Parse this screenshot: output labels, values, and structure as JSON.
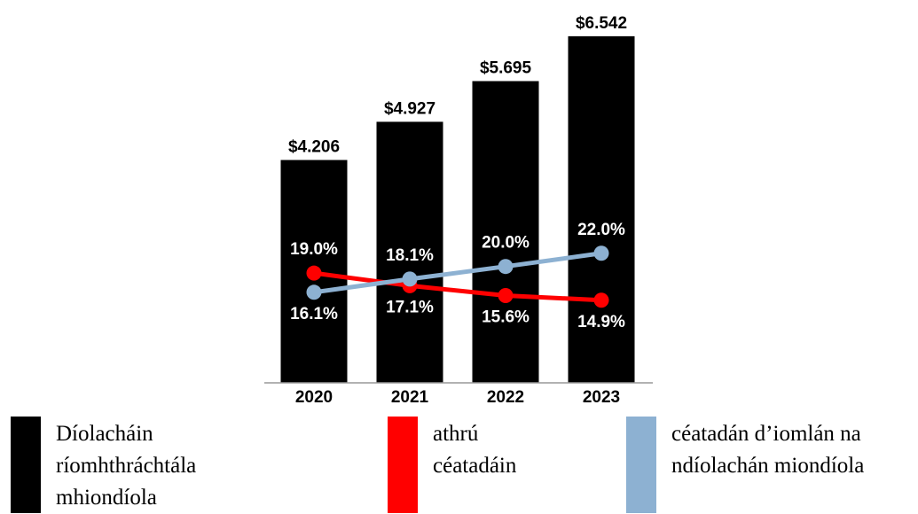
{
  "chart_data": {
    "type": "bar",
    "categories": [
      "2020",
      "2021",
      "2022",
      "2023"
    ],
    "ylim": [
      0,
      7
    ],
    "y2lim": [
      2.4,
      58.5
    ],
    "series": [
      {
        "name": "Díolacháin ríomhthráchtála mhiondíola",
        "color": "#000000",
        "values": [
          4.206,
          4.927,
          5.695,
          6.542
        ],
        "value_labels": [
          "$4.206",
          "$4.927",
          "$5.695",
          "$6.542"
        ]
      },
      {
        "name": "athrú céatadáin",
        "type": "line",
        "axis": "y2",
        "color": "#ff0000",
        "values": [
          19.0,
          17.1,
          15.6,
          14.9
        ],
        "value_labels": [
          "19.0%",
          "17.1%",
          "15.6%",
          "14.9%"
        ]
      },
      {
        "name": "céatadán d’iomlán na ndíolachán miondíola",
        "type": "line",
        "axis": "y2",
        "color": "#8db1d2",
        "values": [
          16.1,
          18.1,
          20.0,
          22.0
        ],
        "value_labels": [
          "16.1%",
          "18.1%",
          "20.0%",
          "22.0%"
        ]
      }
    ]
  }
}
